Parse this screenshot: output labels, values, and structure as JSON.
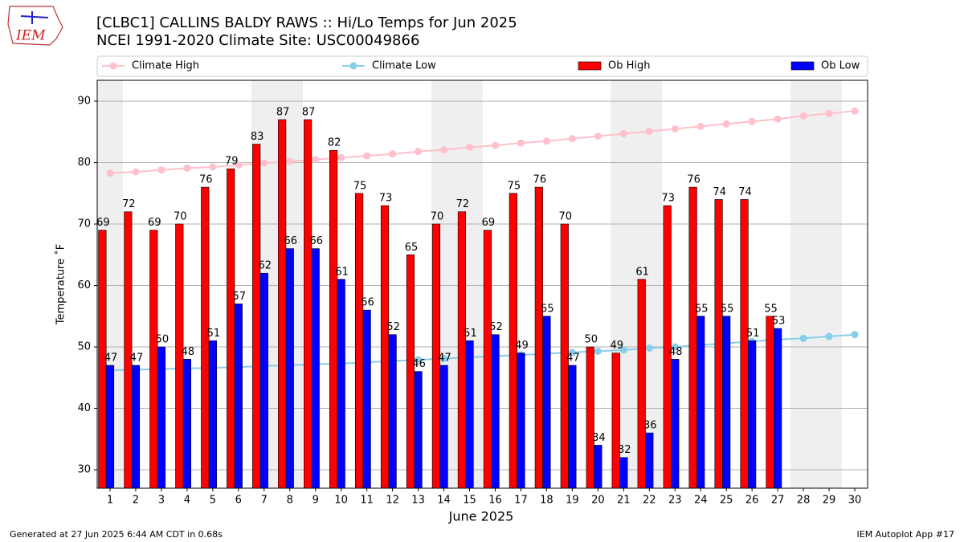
{
  "logo_text": "IEM",
  "footer_left": "Generated at 27 Jun 2025 6:44 AM CDT in 0.68s",
  "footer_right": "IEM Autoplot App #17",
  "chart_data": {
    "type": "bar",
    "title": "[CLBC1] CALLINS BALDY RAWS :: Hi/Lo Temps for Jun 2025",
    "subtitle": "NCEI 1991-2020 Climate Site: USC00049866",
    "x_label": "June 2025",
    "y_label": "Temperature ˚F",
    "x": [
      1,
      2,
      3,
      4,
      5,
      6,
      7,
      8,
      9,
      10,
      11,
      12,
      13,
      14,
      15,
      16,
      17,
      18,
      19,
      20,
      21,
      22,
      23,
      24,
      25,
      26,
      27,
      28,
      29,
      30
    ],
    "xlim": [
      0.5,
      30.5
    ],
    "xticks": [
      1,
      2,
      3,
      4,
      5,
      6,
      7,
      8,
      9,
      10,
      11,
      12,
      13,
      14,
      15,
      16,
      17,
      18,
      19,
      20,
      21,
      22,
      23,
      24,
      25,
      26,
      27,
      28,
      29,
      30
    ],
    "ylim": [
      27,
      93.4
    ],
    "yticks": [
      30,
      40,
      50,
      60,
      70,
      80,
      90
    ],
    "grid": true,
    "series": [
      {
        "name": "Climate High",
        "type": "line",
        "color": "#ffc0cb",
        "values": [
          78.3,
          78.5,
          78.8,
          79.1,
          79.3,
          79.6,
          79.9,
          80.2,
          80.5,
          80.8,
          81.1,
          81.4,
          81.8,
          82.1,
          82.5,
          82.8,
          83.2,
          83.5,
          83.9,
          84.3,
          84.7,
          85.1,
          85.5,
          85.9,
          86.3,
          86.7,
          87.1,
          87.6,
          88.0,
          88.4
        ]
      },
      {
        "name": "Climate Low",
        "type": "line",
        "color": "#87ceeb",
        "values": [
          46.2,
          46.3,
          46.4,
          46.5,
          46.6,
          46.7,
          46.9,
          47.0,
          47.2,
          47.3,
          47.5,
          47.7,
          47.9,
          48.1,
          48.3,
          48.5,
          48.7,
          48.9,
          49.1,
          49.3,
          49.5,
          49.8,
          50.0,
          50.3,
          50.6,
          50.9,
          51.2,
          51.4,
          51.7,
          52.0
        ]
      },
      {
        "name": "Ob High",
        "type": "bar",
        "color": "#ff0000",
        "values": [
          69,
          72,
          69,
          70,
          76,
          79,
          83,
          87,
          87,
          82,
          75,
          73,
          65,
          70,
          72,
          69,
          75,
          76,
          70,
          50,
          49,
          61,
          73,
          76,
          74,
          74,
          55,
          null,
          null,
          null
        ]
      },
      {
        "name": "Ob Low",
        "type": "bar",
        "color": "#0000ff",
        "values": [
          47,
          47,
          50,
          48,
          51,
          57,
          62,
          66,
          66,
          61,
          56,
          52,
          46,
          47,
          51,
          52,
          49,
          55,
          47,
          34,
          32,
          36,
          48,
          55,
          55,
          51,
          53,
          null,
          null,
          null
        ]
      }
    ]
  }
}
